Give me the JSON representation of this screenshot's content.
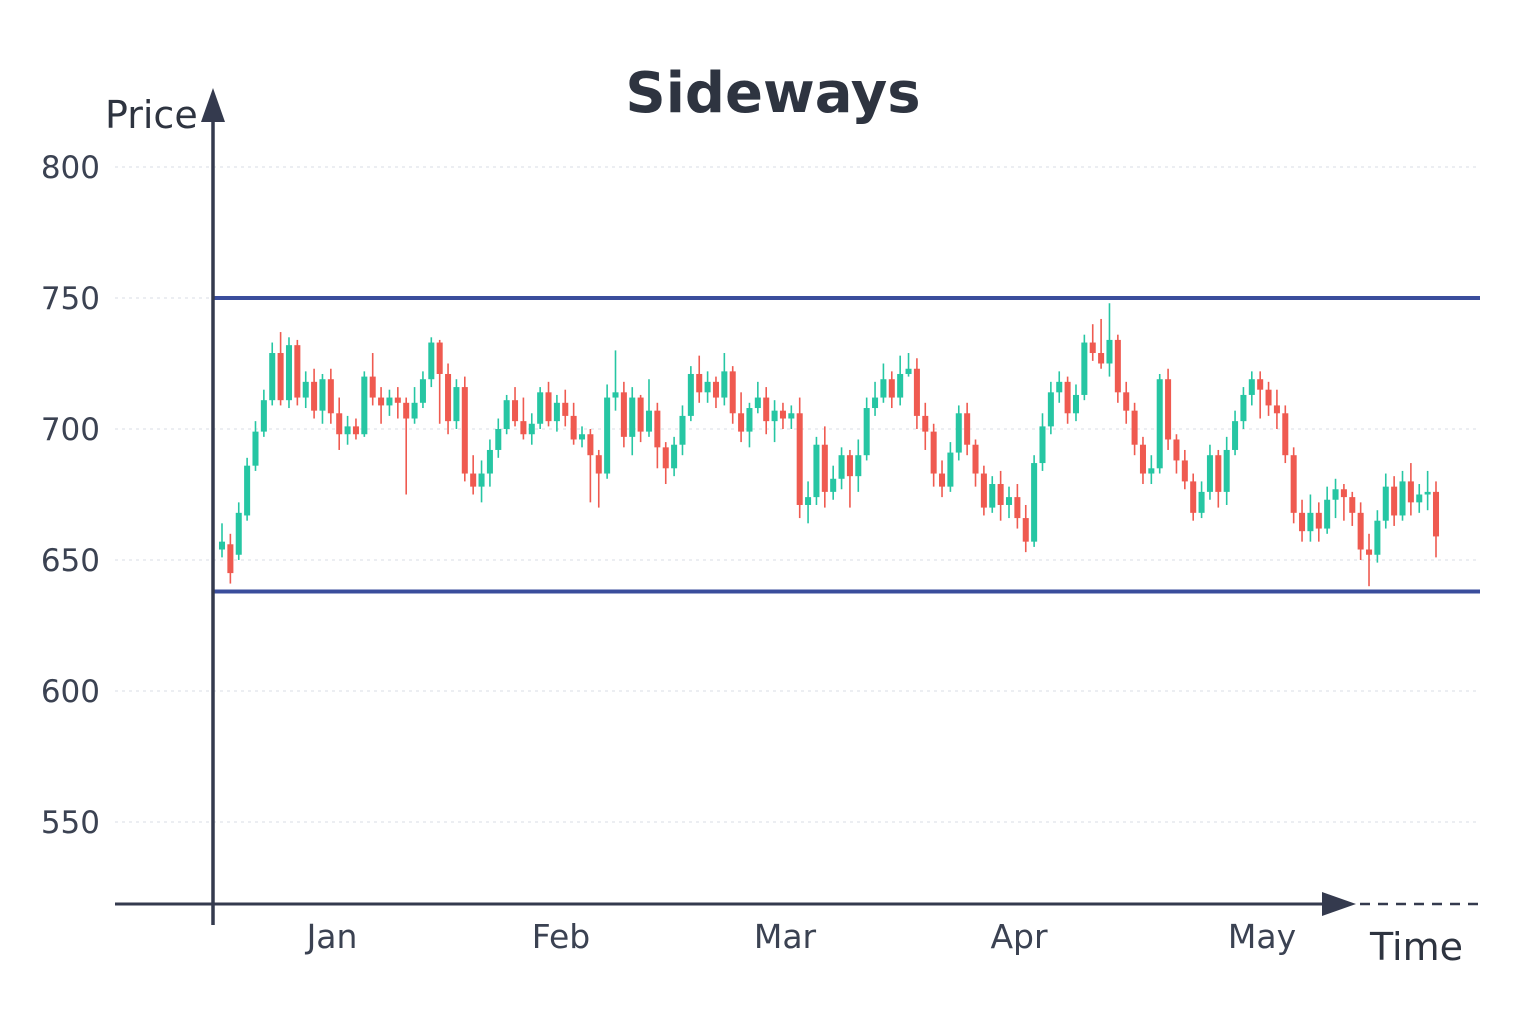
{
  "chart_data": {
    "type": "candlestick",
    "title": "Sideways",
    "ylabel": "Price",
    "xlabel": "Time",
    "ylim": [
      520,
      800
    ],
    "yticks": [
      800,
      750,
      700,
      650,
      600,
      550
    ],
    "months": [
      "Jan",
      "Feb",
      "Mar",
      "Apr",
      "May"
    ],
    "grid": true,
    "resistance": 750,
    "support": 638,
    "colors": {
      "up": "#26c6a3",
      "down": "#ef5a50",
      "band": "#3a4d9c",
      "axis": "#343a4e",
      "grid": "#e6e8ee"
    },
    "candles": [
      [
        654,
        657,
        664,
        651
      ],
      [
        656,
        645,
        660,
        641
      ],
      [
        652,
        668,
        672,
        650
      ],
      [
        667,
        686,
        689,
        665
      ],
      [
        686,
        699,
        703,
        684
      ],
      [
        699,
        711,
        715,
        697
      ],
      [
        711,
        729,
        733,
        709
      ],
      [
        729,
        711,
        737,
        709
      ],
      [
        711,
        732,
        735,
        708
      ],
      [
        732,
        712,
        734,
        709
      ],
      [
        712,
        718,
        722,
        708
      ],
      [
        718,
        707,
        723,
        704
      ],
      [
        707,
        719,
        721,
        702
      ],
      [
        719,
        706,
        723,
        702
      ],
      [
        706,
        698,
        712,
        692
      ],
      [
        698,
        701,
        705,
        694
      ],
      [
        701,
        698,
        704,
        696
      ],
      [
        698,
        720,
        722,
        697
      ],
      [
        720,
        712,
        729,
        709
      ],
      [
        712,
        709,
        716,
        702
      ],
      [
        709,
        712,
        715,
        705
      ],
      [
        712,
        710,
        716,
        704
      ],
      [
        710,
        704,
        712,
        675
      ],
      [
        704,
        710,
        716,
        702
      ],
      [
        710,
        719,
        722,
        708
      ],
      [
        719,
        733,
        735,
        716
      ],
      [
        733,
        721,
        734,
        702
      ],
      [
        721,
        703,
        725,
        698
      ],
      [
        703,
        716,
        719,
        700
      ],
      [
        716,
        683,
        720,
        680
      ],
      [
        683,
        678,
        690,
        675
      ],
      [
        678,
        683,
        688,
        672
      ],
      [
        683,
        692,
        696,
        678
      ],
      [
        692,
        700,
        704,
        689
      ],
      [
        700,
        711,
        713,
        698
      ],
      [
        711,
        703,
        716,
        701
      ],
      [
        703,
        698,
        712,
        696
      ],
      [
        698,
        702,
        706,
        694
      ],
      [
        702,
        714,
        716,
        700
      ],
      [
        714,
        703,
        718,
        701
      ],
      [
        703,
        710,
        713,
        699
      ],
      [
        710,
        705,
        715,
        701
      ],
      [
        705,
        696,
        710,
        694
      ],
      [
        696,
        698,
        701,
        693
      ],
      [
        698,
        690,
        700,
        672
      ],
      [
        690,
        683,
        692,
        670
      ],
      [
        683,
        712,
        717,
        681
      ],
      [
        712,
        714,
        730,
        707
      ],
      [
        714,
        697,
        718,
        693
      ],
      [
        697,
        712,
        716,
        690
      ],
      [
        712,
        699,
        713,
        695
      ],
      [
        699,
        707,
        719,
        697
      ],
      [
        707,
        693,
        710,
        685
      ],
      [
        693,
        685,
        695,
        679
      ],
      [
        685,
        694,
        697,
        682
      ],
      [
        694,
        705,
        709,
        690
      ],
      [
        705,
        721,
        724,
        703
      ],
      [
        721,
        714,
        728,
        710
      ],
      [
        714,
        718,
        722,
        710
      ],
      [
        718,
        712,
        720,
        708
      ],
      [
        712,
        722,
        729,
        709
      ],
      [
        722,
        706,
        724,
        702
      ],
      [
        706,
        699,
        714,
        695
      ],
      [
        699,
        708,
        710,
        693
      ],
      [
        708,
        712,
        718,
        706
      ],
      [
        712,
        703,
        716,
        698
      ],
      [
        703,
        707,
        711,
        695
      ],
      [
        707,
        704,
        710,
        700
      ],
      [
        704,
        706,
        709,
        700
      ],
      [
        706,
        671,
        712,
        666
      ],
      [
        671,
        674,
        680,
        664
      ],
      [
        674,
        694,
        697,
        671
      ],
      [
        694,
        676,
        701,
        670
      ],
      [
        676,
        681,
        686,
        673
      ],
      [
        681,
        690,
        693,
        677
      ],
      [
        690,
        682,
        692,
        670
      ],
      [
        682,
        690,
        696,
        676
      ],
      [
        690,
        708,
        712,
        688
      ],
      [
        708,
        712,
        718,
        705
      ],
      [
        712,
        719,
        725,
        710
      ],
      [
        719,
        712,
        722,
        708
      ],
      [
        712,
        721,
        728,
        709
      ],
      [
        721,
        723,
        729,
        720
      ],
      [
        723,
        705,
        727,
        700
      ],
      [
        705,
        699,
        710,
        692
      ],
      [
        699,
        683,
        702,
        678
      ],
      [
        683,
        678,
        688,
        674
      ],
      [
        678,
        691,
        695,
        676
      ],
      [
        691,
        706,
        709,
        688
      ],
      [
        706,
        694,
        710,
        690
      ],
      [
        694,
        683,
        696,
        678
      ],
      [
        683,
        670,
        686,
        667
      ],
      [
        670,
        679,
        682,
        668
      ],
      [
        679,
        671,
        684,
        665
      ],
      [
        671,
        674,
        678,
        666
      ],
      [
        674,
        666,
        679,
        662
      ],
      [
        666,
        657,
        671,
        653
      ],
      [
        657,
        687,
        690,
        655
      ],
      [
        687,
        701,
        706,
        684
      ],
      [
        701,
        714,
        718,
        698
      ],
      [
        714,
        718,
        722,
        710
      ],
      [
        718,
        706,
        720,
        702
      ],
      [
        706,
        713,
        717,
        703
      ],
      [
        713,
        733,
        736,
        711
      ],
      [
        733,
        729,
        740,
        726
      ],
      [
        729,
        725,
        742,
        723
      ],
      [
        725,
        734,
        748,
        720
      ],
      [
        734,
        714,
        736,
        710
      ],
      [
        714,
        707,
        718,
        702
      ],
      [
        707,
        694,
        710,
        690
      ],
      [
        694,
        683,
        697,
        679
      ],
      [
        683,
        685,
        690,
        679
      ],
      [
        685,
        719,
        721,
        683
      ],
      [
        719,
        696,
        723,
        692
      ],
      [
        696,
        688,
        698,
        683
      ],
      [
        688,
        680,
        692,
        677
      ],
      [
        680,
        668,
        683,
        665
      ],
      [
        668,
        676,
        680,
        666
      ],
      [
        676,
        690,
        694,
        673
      ],
      [
        690,
        676,
        692,
        670
      ],
      [
        676,
        692,
        697,
        671
      ],
      [
        692,
        703,
        707,
        690
      ],
      [
        703,
        713,
        716,
        700
      ],
      [
        713,
        719,
        722,
        709
      ],
      [
        719,
        715,
        722,
        704
      ],
      [
        715,
        709,
        718,
        705
      ],
      [
        709,
        706,
        715,
        700
      ],
      [
        706,
        690,
        709,
        687
      ],
      [
        690,
        668,
        693,
        664
      ],
      [
        668,
        661,
        673,
        657
      ],
      [
        661,
        668,
        675,
        657
      ],
      [
        668,
        662,
        672,
        657
      ],
      [
        662,
        673,
        678,
        660
      ],
      [
        673,
        677,
        681,
        666
      ],
      [
        677,
        674,
        679,
        665
      ],
      [
        674,
        668,
        676,
        663
      ],
      [
        668,
        654,
        672,
        650
      ],
      [
        654,
        652,
        660,
        640
      ],
      [
        652,
        665,
        669,
        649
      ],
      [
        665,
        678,
        683,
        662
      ],
      [
        678,
        667,
        682,
        663
      ],
      [
        667,
        680,
        684,
        665
      ],
      [
        680,
        672,
        687,
        667
      ],
      [
        672,
        675,
        679,
        668
      ],
      [
        675,
        676,
        684,
        669
      ],
      [
        676,
        659,
        680,
        651
      ]
    ]
  }
}
